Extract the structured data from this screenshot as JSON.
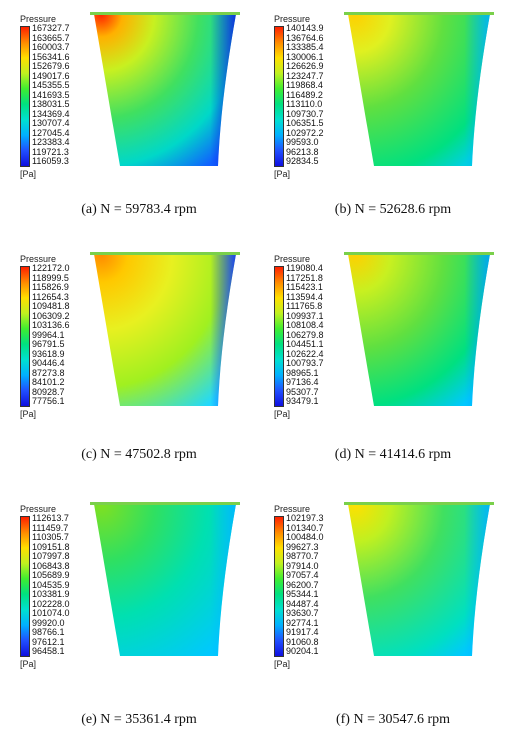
{
  "legend_title": "Pressure",
  "unit": "[Pa]",
  "panels": [
    {
      "caption": "(a) N = 59783.4 rpm",
      "ticks": [
        "167327.7",
        "163665.7",
        "160003.7",
        "156341.6",
        "152679.6",
        "149017.6",
        "145355.5",
        "141693.5",
        "138031.5",
        "134369.4",
        "130707.4",
        "127045.4",
        "123383.4",
        "119721.3",
        "116059.3"
      ],
      "gradient": [
        "#1010e0",
        "#2050ff",
        "#00b0ff",
        "#00e0d0",
        "#00e080",
        "#40ee30",
        "#c0f020",
        "#ffe000",
        "#ff8a00",
        "#ff2000"
      ]
    },
    {
      "caption": "(b) N = 52628.6 rpm",
      "ticks": [
        "140143.9",
        "136764.6",
        "133385.4",
        "130006.1",
        "126626.9",
        "123247.7",
        "119868.4",
        "116489.2",
        "113110.0",
        "109730.7",
        "106351.5",
        "102972.2",
        "99593.0",
        "96213.8",
        "92834.5"
      ],
      "gradient": [
        "#1010e0",
        "#2050ff",
        "#00b0ff",
        "#00e0d0",
        "#00e080",
        "#40ee30",
        "#c0f020",
        "#ffe000",
        "#ff8a00",
        "#ff2000"
      ]
    },
    {
      "caption": "(c) N = 47502.8 rpm",
      "ticks": [
        "122172.0",
        "118999.5",
        "115826.9",
        "112654.3",
        "109481.8",
        "106309.2",
        "103136.6",
        "99964.1",
        "96791.5",
        "93618.9",
        "90446.4",
        "87273.8",
        "84101.2",
        "80928.7",
        "77756.1"
      ],
      "gradient": [
        "#1010e0",
        "#2050ff",
        "#00b0ff",
        "#00e0d0",
        "#00e080",
        "#40ee30",
        "#c0f020",
        "#ffe000",
        "#ff8a00",
        "#ff2000"
      ]
    },
    {
      "caption": "(d) N = 41414.6 rpm",
      "ticks": [
        "119080.4",
        "117251.8",
        "115423.1",
        "113594.4",
        "111765.8",
        "109937.1",
        "108108.4",
        "106279.8",
        "104451.1",
        "102622.4",
        "100793.7",
        "98965.1",
        "97136.4",
        "95307.7",
        "93479.1"
      ],
      "gradient": [
        "#1010e0",
        "#2050ff",
        "#00b0ff",
        "#00e0d0",
        "#00e080",
        "#40ee30",
        "#c0f020",
        "#ffe000",
        "#ff8a00",
        "#ff2000"
      ]
    },
    {
      "caption": "(e) N = 35361.4 rpm",
      "ticks": [
        "112613.7",
        "111459.7",
        "110305.7",
        "109151.8",
        "107997.8",
        "106843.8",
        "105689.9",
        "104535.9",
        "103381.9",
        "102228.0",
        "101074.0",
        "99920.0",
        "98766.1",
        "97612.1",
        "96458.1"
      ],
      "gradient": [
        "#1010e0",
        "#2050ff",
        "#00b0ff",
        "#00e0d0",
        "#00e080",
        "#40ee30",
        "#c0f020",
        "#ffe000",
        "#ff8a00",
        "#ff2000"
      ]
    },
    {
      "caption": "(f) N = 30547.6 rpm",
      "ticks": [
        "102197.3",
        "101340.7",
        "100484.0",
        "99627.3",
        "98770.7",
        "97914.0",
        "97057.4",
        "96200.7",
        "95344.1",
        "94487.4",
        "93630.7",
        "92774.1",
        "91917.4",
        "91060.8",
        "90204.1"
      ],
      "gradient": [
        "#1010e0",
        "#2050ff",
        "#00b0ff",
        "#00e0d0",
        "#00e080",
        "#40ee30",
        "#c0f020",
        "#ffe000",
        "#ff8a00",
        "#ff2000"
      ]
    }
  ]
}
